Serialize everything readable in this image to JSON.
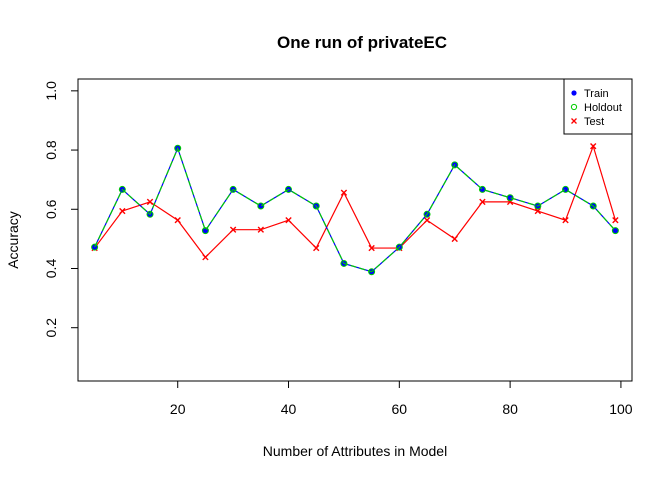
{
  "chart_data": {
    "type": "line",
    "title": "One run of privateEC",
    "xlabel": "Number of Attributes in Model",
    "ylabel": "Accuracy",
    "xlim": [
      2,
      102
    ],
    "ylim": [
      0.02,
      1.04
    ],
    "x_ticks": [
      20,
      40,
      60,
      80,
      100
    ],
    "y_ticks": [
      0.2,
      0.4,
      0.6,
      0.8,
      1.0
    ],
    "x_tick_labels": [
      "20",
      "40",
      "60",
      "80",
      "100"
    ],
    "y_tick_labels": [
      "0.2",
      "0.4",
      "0.6",
      "0.8",
      "1.0"
    ],
    "x": [
      5,
      10,
      15,
      20,
      25,
      30,
      35,
      40,
      45,
      50,
      55,
      60,
      65,
      70,
      75,
      80,
      85,
      90,
      95,
      99
    ],
    "series": [
      {
        "name": "Train",
        "color": "#0000ff",
        "marker": "filled-circle",
        "values": [
          0.472,
          0.667,
          0.583,
          0.806,
          0.528,
          0.667,
          0.611,
          0.667,
          0.611,
          0.417,
          0.389,
          0.472,
          0.583,
          0.75,
          0.667,
          0.639,
          0.611,
          0.667,
          0.611,
          0.528
        ]
      },
      {
        "name": "Holdout",
        "color": "#00cd00",
        "marker": "open-circle",
        "line": "dashed",
        "values": [
          0.472,
          0.667,
          0.583,
          0.806,
          0.528,
          0.667,
          0.611,
          0.667,
          0.611,
          0.417,
          0.389,
          0.472,
          0.583,
          0.75,
          0.667,
          0.639,
          0.611,
          0.667,
          0.611,
          0.528
        ]
      },
      {
        "name": "Test",
        "color": "#ff0000",
        "marker": "cross",
        "values": [
          0.469,
          0.594,
          0.625,
          0.563,
          0.438,
          0.531,
          0.531,
          0.563,
          0.469,
          0.656,
          0.469,
          0.469,
          0.563,
          0.5,
          0.625,
          0.625,
          0.594,
          0.563,
          0.813,
          0.563
        ]
      }
    ],
    "legend": {
      "placement": "top-right",
      "entries": [
        "Train",
        "Holdout",
        "Test"
      ]
    },
    "grid": false
  }
}
